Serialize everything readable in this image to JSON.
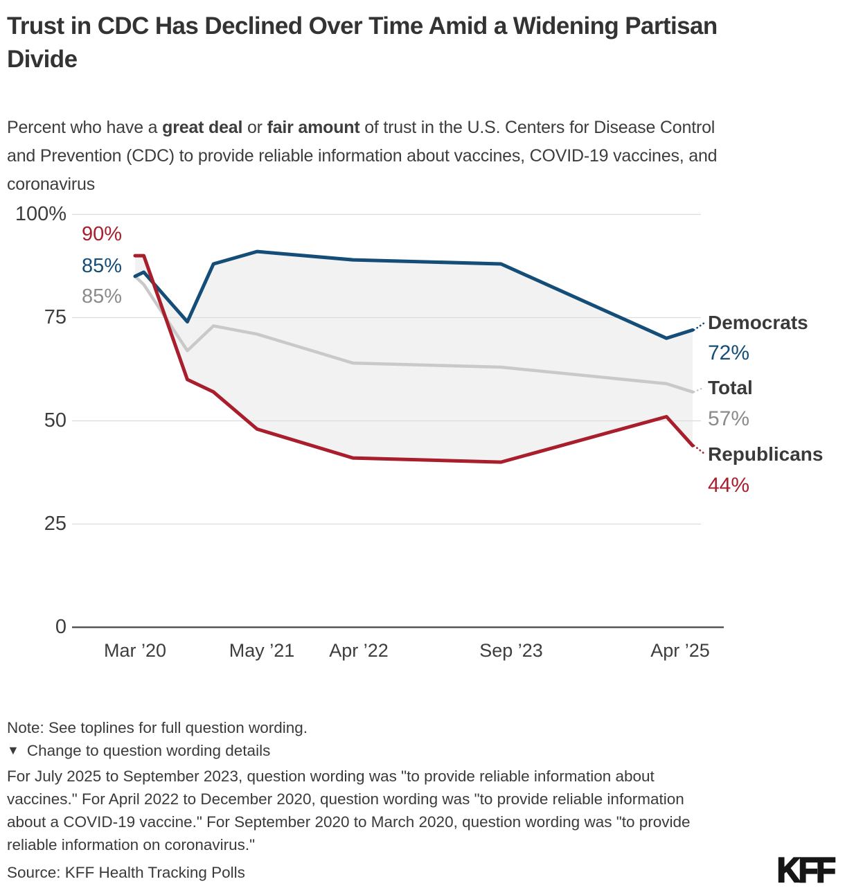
{
  "header": {
    "title": "Trust in CDC Has Declined Over Time Amid a Widening Partisan Divide",
    "subtitle": {
      "part1": "Percent who have a ",
      "bold1": "great deal",
      "part2": " or ",
      "bold2": "fair amount",
      "part3": " of trust in the U.S. Centers for Disease Control and Prevention (CDC) to provide reliable information about vaccines, COVID-19 vaccines, and coronavirus"
    }
  },
  "chart_data": {
    "type": "line",
    "x_dates": [
      "Mar ’20",
      "Apr ’20",
      "Sep ’20",
      "Dec ’20",
      "May ’21",
      "Apr ’22",
      "Sep ’23",
      "Apr ’25",
      "Jul ’25"
    ],
    "x_months_from_start": [
      0,
      1,
      6,
      9,
      14,
      25,
      42,
      61,
      64
    ],
    "x_tick_labels": [
      "Mar ’20",
      "May ’21",
      "Apr ’22",
      "Sep ’23",
      "Apr ’25"
    ],
    "y_tick_labels": [
      "100%",
      "75",
      "50",
      "25",
      "0"
    ],
    "ylim": [
      0,
      100
    ],
    "grid": true,
    "legend_position": "right-of-line-ends",
    "band_fill_between": [
      "Democrats",
      "Republicans"
    ],
    "band_color": "#f2f2f2",
    "series": [
      {
        "name": "Democrats",
        "color": "#134d78",
        "values": [
          85,
          86,
          74,
          88,
          91,
          89,
          88,
          70,
          72
        ],
        "first_value_label": "85%",
        "last_value_label": "72%"
      },
      {
        "name": "Total",
        "color": "#c9c9c9",
        "values": [
          85,
          83,
          67,
          73,
          71,
          64,
          63,
          59,
          57
        ],
        "first_value_label": "85%",
        "last_value_label": "57%"
      },
      {
        "name": "Republicans",
        "color": "#a81e2c",
        "values": [
          90,
          90,
          60,
          57,
          48,
          41,
          40,
          51,
          44
        ],
        "first_value_label": "90%",
        "last_value_label": "44%"
      }
    ]
  },
  "footer": {
    "note": "Note: See toplines for full question wording.",
    "toggle_icon": "▼",
    "toggle_label": "Change to question wording details",
    "details": "For July 2025 to September 2023, question wording was \"to provide reliable information about vaccines.\" For April 2022 to December 2020, question wording was \"to provide reliable information about a COVID-19 vaccine.\" For September 2020 to March 2020, question wording was \"to provide reliable information on coronavirus.\"",
    "source": "Source: KFF Health Tracking Polls",
    "logo": "KFF"
  }
}
